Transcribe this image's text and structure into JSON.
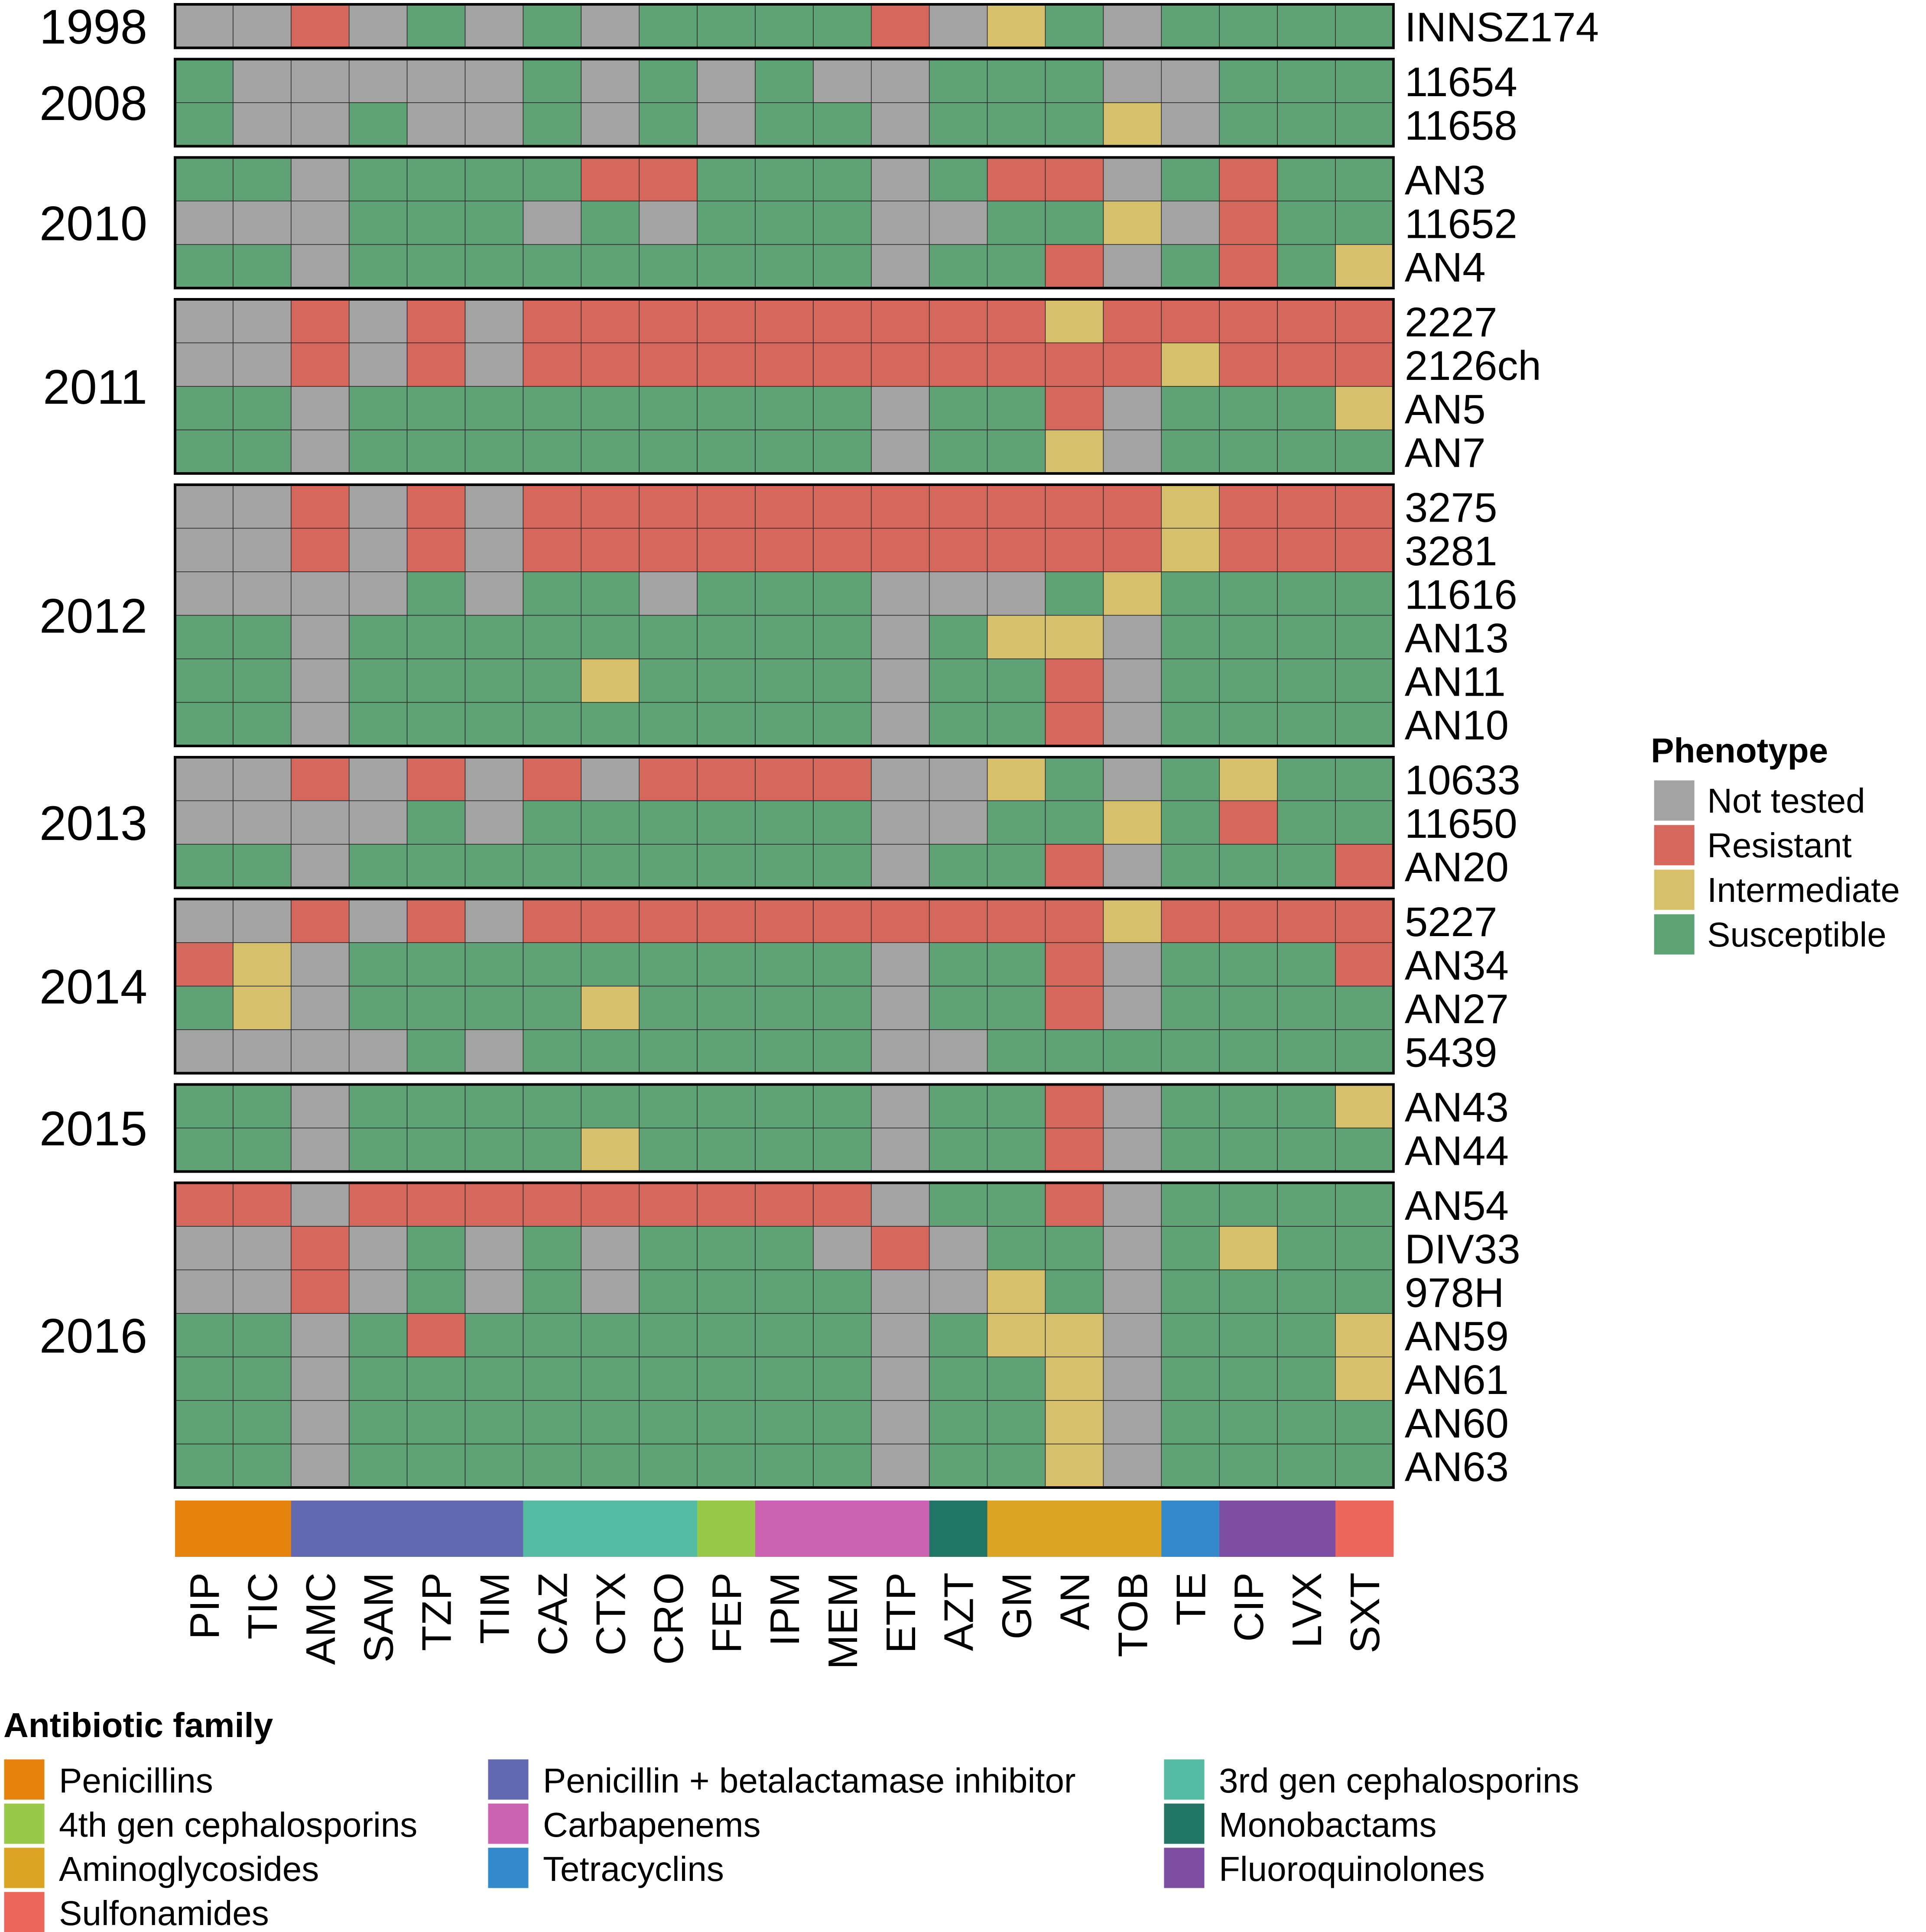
{
  "chart_data": {
    "type": "heatmap",
    "title": "",
    "columns": [
      "PIP",
      "TIC",
      "AMC",
      "SAM",
      "TZP",
      "TIM",
      "CAZ",
      "CTX",
      "CRO",
      "FEP",
      "IPM",
      "MEM",
      "ETP",
      "AZT",
      "GM",
      "AN",
      "TOB",
      "TE",
      "CIP",
      "LVX",
      "SXT"
    ],
    "column_families": [
      "Penicillins",
      "Penicillins",
      "Penicillin + betalactamase inhibitor",
      "Penicillin + betalactamase inhibitor",
      "Penicillin + betalactamase inhibitor",
      "Penicillin + betalactamase inhibitor",
      "3rd gen cephalosporins",
      "3rd gen cephalosporins",
      "3rd gen cephalosporins",
      "4th gen cephalosporins",
      "Carbapenems",
      "Carbapenems",
      "Carbapenems",
      "Monobactams",
      "Aminoglycosides",
      "Aminoglycosides",
      "Aminoglycosides",
      "Tetracyclins",
      "Fluoroquinolones",
      "Fluoroquinolones",
      "Sulfonamides"
    ],
    "phenotype_codes": {
      "N": "Not tested",
      "R": "Resistant",
      "I": "Intermediate",
      "S": "Susceptible"
    },
    "groups": [
      {
        "year": "1998",
        "rows": [
          {
            "strain": "INNSZ174",
            "values": "NNRNSNSNSSSSRNISNSSSS"
          }
        ]
      },
      {
        "year": "2008",
        "rows": [
          {
            "strain": "11654",
            "values": "SNNNNNSNSNSNNSSSNNSSS"
          },
          {
            "strain": "11658",
            "values": "SNNSNNSNSNSSNSSSINSSS"
          }
        ]
      },
      {
        "year": "2010",
        "rows": [
          {
            "strain": "AN3",
            "values": "SSNSSSSRRSSSNSRRNSRSS"
          },
          {
            "strain": "11652",
            "values": "NNNSSSNSNSSSNNSSINRSS"
          },
          {
            "strain": "AN4",
            "values": "SSNSSSSSSSSSNSSRNSRSI"
          }
        ]
      },
      {
        "year": "2011",
        "rows": [
          {
            "strain": "2227",
            "values": "NNRNRNRRRRRRRRRIRRRRR"
          },
          {
            "strain": "2126ch",
            "values": "NNRNRNRRRRRRRRRRRIRRR"
          },
          {
            "strain": "AN5",
            "values": "SSNSSSSSSSSSNSSRNSSSI"
          },
          {
            "strain": "AN7",
            "values": "SSNSSSSSSSSSNSSINSSSS"
          }
        ]
      },
      {
        "year": "2012",
        "rows": [
          {
            "strain": "3275",
            "values": "NNRNRNRRRRRRRRRRRIRRR"
          },
          {
            "strain": "3281",
            "values": "NNRNRNRRRRRRRRRRRIRRR"
          },
          {
            "strain": "11616",
            "values": "NNNNSNSSNSSSNNNSISSSS"
          },
          {
            "strain": "AN13",
            "values": "SSNSSSSSSSSSNSIINSSSS"
          },
          {
            "strain": "AN11",
            "values": "SSNSSSSISSSSNSSRNSSSS"
          },
          {
            "strain": "AN10",
            "values": "SSNSSSSSSSSSNSSRNSSSS"
          }
        ]
      },
      {
        "year": "2013",
        "rows": [
          {
            "strain": "10633",
            "values": "NNRNRNRNRRRRNNISNSISS"
          },
          {
            "strain": "11650",
            "values": "NNNNSNSSSSSSNNSSISRSS"
          },
          {
            "strain": "AN20",
            "values": "SSNSSSSSSSSSNSSRNSSSR"
          }
        ]
      },
      {
        "year": "2014",
        "rows": [
          {
            "strain": "5227",
            "values": "NNRNRNRRRRRRRRRRIRRRR"
          },
          {
            "strain": "AN34",
            "values": "RINSSSSSSSSSNSSRNSSSR"
          },
          {
            "strain": "AN27",
            "values": "SINSSSSISSSSNSSRNSSSS"
          },
          {
            "strain": "5439",
            "values": "NNNNSNSSSSSSNNSSSSSSS"
          }
        ]
      },
      {
        "year": "2015",
        "rows": [
          {
            "strain": "AN43",
            "values": "SSNSSSSSSSSSNSSRNSSSI"
          },
          {
            "strain": "AN44",
            "values": "SSNSSSSISSSSNSSRNSSSS"
          }
        ]
      },
      {
        "year": "2016",
        "rows": [
          {
            "strain": "AN54",
            "values": "RRNRRRRRRRRRNSSRNSSSS"
          },
          {
            "strain": "DIV33",
            "values": "NNRNSNSNSSSNRNSSNSISS"
          },
          {
            "strain": "978H",
            "values": "NNRNSNSNSSSSNNISNSSSS"
          },
          {
            "strain": "AN59",
            "values": "SSNSRSSSSSSSNSIINSSSI"
          },
          {
            "strain": "AN61",
            "values": "SSNSSSSSSSSSNSSINSSSI"
          },
          {
            "strain": "AN60",
            "values": "SSNSSSSSSSSSNSSINSSSS"
          },
          {
            "strain": "AN63",
            "values": "SSNSSSSSSSSSNSSINSSSS"
          }
        ]
      }
    ],
    "phenotype_legend": {
      "title": "Phenotype",
      "items": [
        {
          "code": "N",
          "label": "Not tested",
          "color": "#a3a3a3"
        },
        {
          "code": "R",
          "label": "Resistant",
          "color": "#d6675c"
        },
        {
          "code": "I",
          "label": "Intermediate",
          "color": "#d6c06c"
        },
        {
          "code": "S",
          "label": "Susceptible",
          "color": "#5fa276"
        }
      ]
    },
    "family_legend": {
      "title": "Antibiotic family",
      "items": [
        {
          "label": "Penicillins",
          "color": "#e6820e"
        },
        {
          "label": "Penicillin + betalactamase inhibitor",
          "color": "#6369b0"
        },
        {
          "label": "3rd gen cephalosporins",
          "color": "#56bca4"
        },
        {
          "label": "4th gen cephalosporins",
          "color": "#98c94b"
        },
        {
          "label": "Carbapenems",
          "color": "#cc62b2"
        },
        {
          "label": "Monobactams",
          "color": "#217565"
        },
        {
          "label": "Aminoglycosides",
          "color": "#dba424"
        },
        {
          "label": "Tetracyclins",
          "color": "#3389c9"
        },
        {
          "label": "Fluoroquinolones",
          "color": "#7d4da2"
        },
        {
          "label": "Sulfonamides",
          "color": "#ec675e"
        }
      ]
    }
  }
}
